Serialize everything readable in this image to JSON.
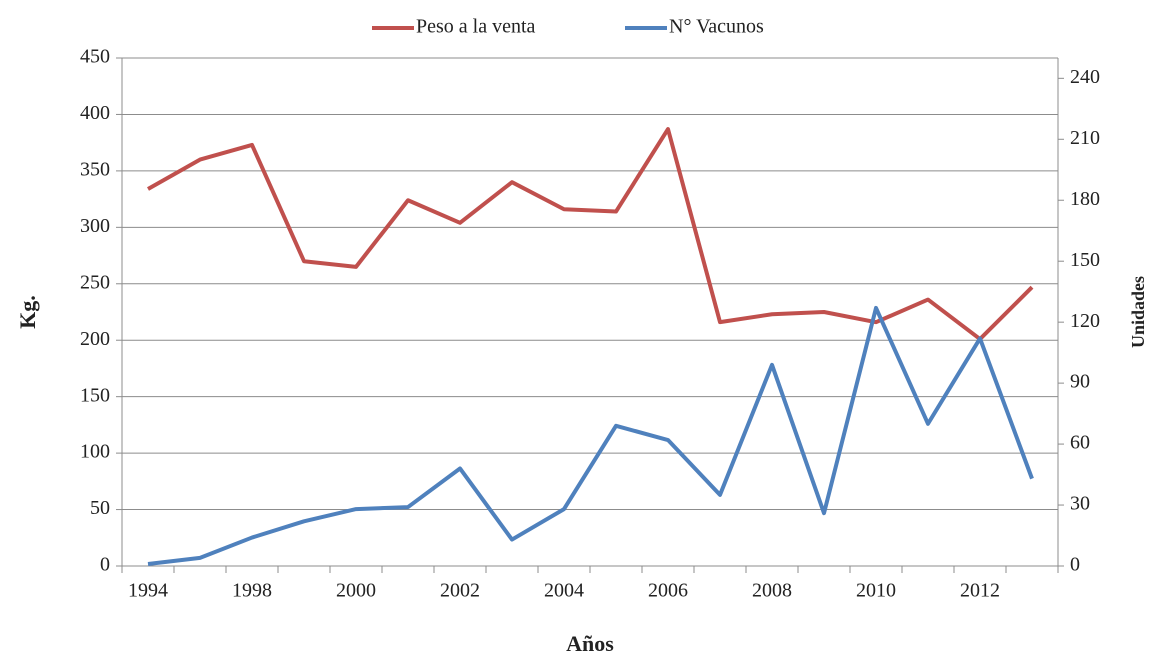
{
  "chart_data": {
    "type": "line",
    "categories": [
      "1994",
      null,
      "1998",
      null,
      "2000",
      null,
      "2002",
      null,
      "2004",
      null,
      "2006",
      null,
      "2008",
      null,
      "2010",
      null,
      "2012",
      null
    ],
    "series": [
      {
        "name": "Peso a la venta",
        "color": "#c0504d",
        "values": [
          334,
          360,
          373,
          270,
          265,
          324,
          304,
          340,
          316,
          314,
          387,
          216,
          223,
          225,
          216,
          236,
          201,
          247
        ]
      },
      {
        "name": "N° Vacunos",
        "color": "#4f81bd",
        "axis": "y2",
        "values": [
          1,
          4,
          14,
          22,
          28,
          29,
          48,
          13,
          28,
          69,
          62,
          35,
          99,
          26,
          127,
          70,
          112,
          43
        ]
      }
    ],
    "ylabel": "Kg.",
    "y2label": "Unidades",
    "xlabel": "Años",
    "ylim": [
      0,
      450
    ],
    "yticks": [
      0,
      50,
      100,
      150,
      200,
      250,
      300,
      350,
      400,
      450
    ],
    "y2lim": [
      0,
      250
    ],
    "y2ticks": [
      0,
      30,
      60,
      90,
      120,
      150,
      180,
      210,
      240
    ],
    "grid": true,
    "legend": "top"
  }
}
